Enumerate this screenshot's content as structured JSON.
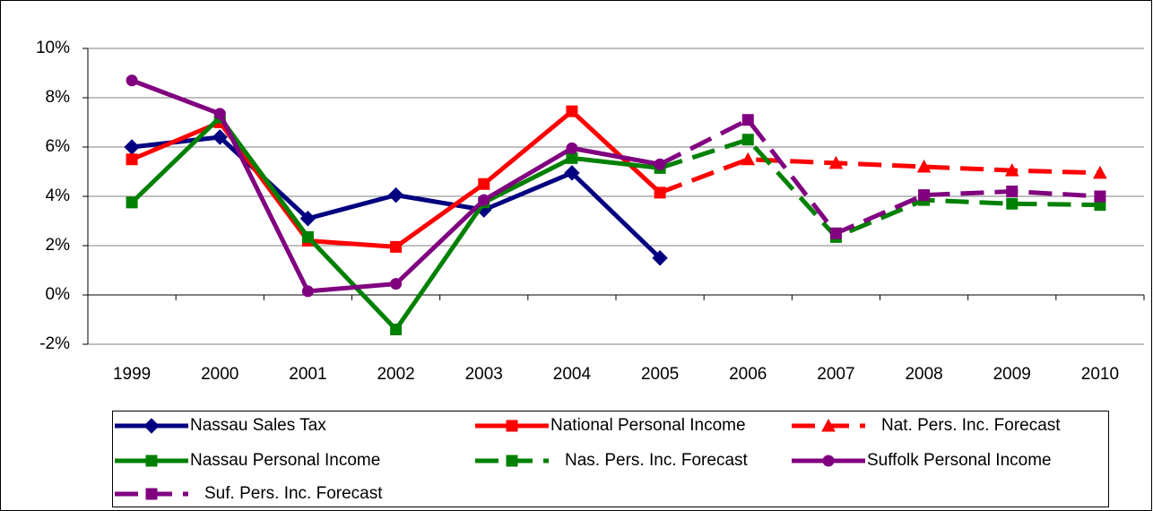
{
  "chart_data": {
    "type": "line",
    "categories": [
      "1999",
      "2000",
      "2001",
      "2002",
      "2003",
      "2004",
      "2005",
      "2006",
      "2007",
      "2008",
      "2009",
      "2010"
    ],
    "ylim": [
      -2,
      10
    ],
    "yticks": [
      {
        "value": -2,
        "label": "-2%"
      },
      {
        "value": 0,
        "label": "0%"
      },
      {
        "value": 2,
        "label": "2%"
      },
      {
        "value": 4,
        "label": "4%"
      },
      {
        "value": 6,
        "label": "6%"
      },
      {
        "value": 8,
        "label": "8%"
      },
      {
        "value": 10,
        "label": "10%"
      }
    ],
    "grid": true,
    "legend": "bottom",
    "series": [
      {
        "name": "Nassau Sales Tax",
        "color": "#000080",
        "marker": "diamond",
        "dashed": false,
        "values": [
          6.0,
          6.4,
          3.1,
          4.05,
          3.45,
          4.95,
          1.5,
          null,
          null,
          null,
          null,
          null
        ]
      },
      {
        "name": "National Personal Income",
        "color": "#ff0000",
        "marker": "square",
        "dashed": false,
        "values": [
          5.5,
          7.0,
          2.2,
          1.95,
          4.5,
          7.45,
          4.15,
          null,
          null,
          null,
          null,
          null
        ]
      },
      {
        "name": "Nat. Pers. Inc. Forecast",
        "color": "#ff0000",
        "marker": "triangle",
        "dashed": true,
        "values": [
          null,
          null,
          null,
          null,
          null,
          null,
          4.15,
          5.5,
          5.35,
          5.2,
          5.05,
          4.95
        ]
      },
      {
        "name": "Nassau Personal Income",
        "color": "#008000",
        "marker": "square",
        "dashed": false,
        "values": [
          3.75,
          7.2,
          2.35,
          -1.4,
          3.75,
          5.55,
          5.15,
          null,
          null,
          null,
          null,
          null
        ]
      },
      {
        "name": "Nas. Pers. Inc. Forecast",
        "color": "#008000",
        "marker": "square",
        "dashed": true,
        "values": [
          null,
          null,
          null,
          null,
          null,
          null,
          5.15,
          6.3,
          2.35,
          3.85,
          3.7,
          3.65
        ]
      },
      {
        "name": "Suffolk Personal Income",
        "color": "#800080",
        "marker": "circle",
        "dashed": false,
        "values": [
          8.7,
          7.35,
          0.15,
          0.45,
          3.85,
          5.95,
          5.3,
          null,
          null,
          null,
          null,
          null
        ]
      },
      {
        "name": "Suf. Pers. Inc. Forecast",
        "color": "#800080",
        "marker": "square",
        "dashed": true,
        "values": [
          null,
          null,
          null,
          null,
          null,
          null,
          5.3,
          7.1,
          2.5,
          4.05,
          4.2,
          4.0
        ]
      }
    ]
  }
}
